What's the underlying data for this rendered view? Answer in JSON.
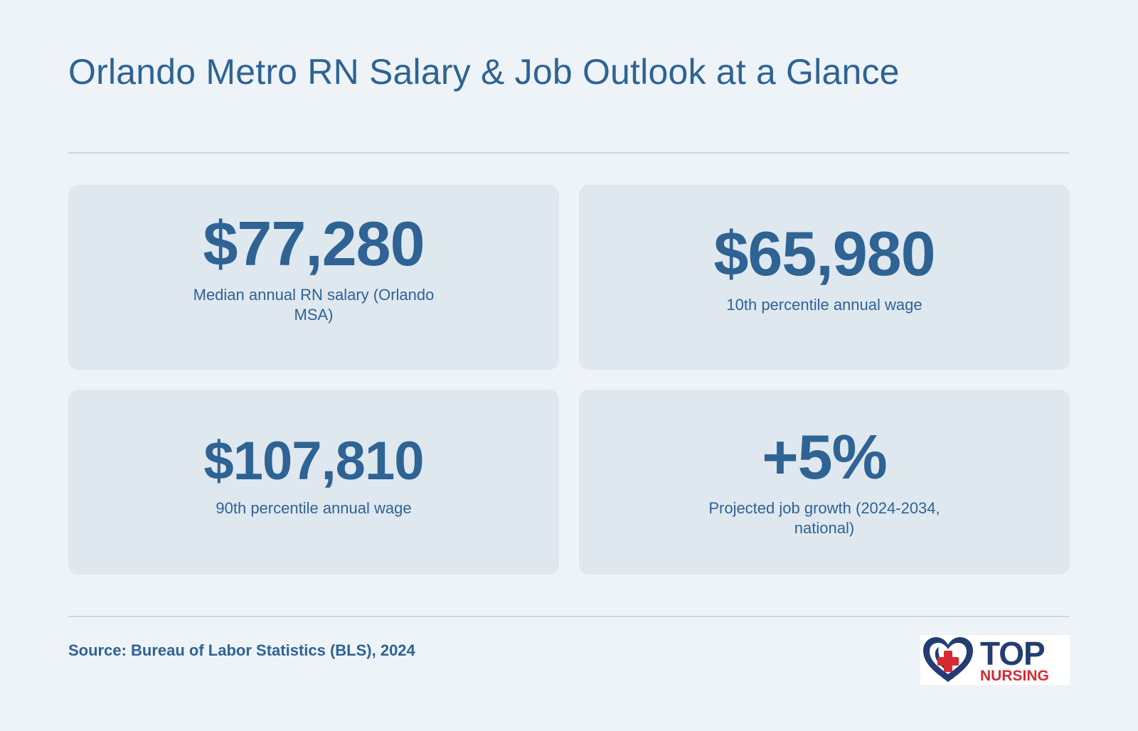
{
  "header": {
    "title": "Orlando Metro RN Salary & Job Outlook at a Glance"
  },
  "stats": [
    {
      "value": "$77,280",
      "label": "Median annual RN salary (Orlando MSA)"
    },
    {
      "value": "$65,980",
      "label": "10th percentile annual wage"
    },
    {
      "value": "$107,810",
      "label": "90th percentile annual wage"
    },
    {
      "value": "+5%",
      "label": "Projected job growth (2024-2034, national)"
    }
  ],
  "footer": {
    "source": "Source: Bureau of Labor Statistics (BLS), 2024",
    "logo": {
      "line1": "TOP",
      "line2": "NURSING",
      "icon": "heart-cross-icon"
    }
  },
  "colors": {
    "background": "#eef3f7",
    "card": "#dfe7ef",
    "text": "#2e6394",
    "logo_navy": "#233c73",
    "logo_red": "#d52b33"
  }
}
